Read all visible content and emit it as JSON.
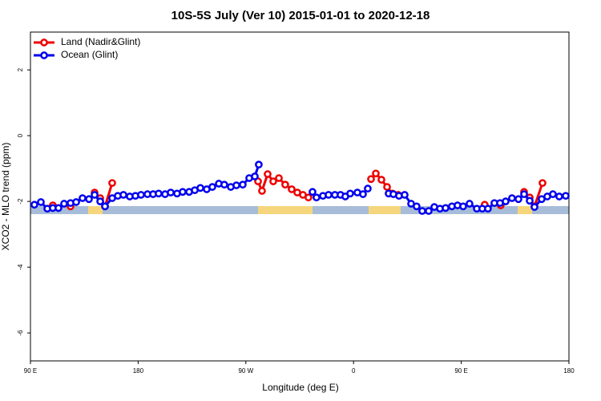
{
  "chart_data": {
    "type": "line",
    "title": "10S-5S July (Ver 10)   2015-01-01 to 2020-12-18",
    "x_label": "Longitude (deg E)",
    "y_label": "XCO2 - MLO trend (ppm)",
    "xlim": [
      90,
      540
    ],
    "ylim": [
      -6.85,
      3.15
    ],
    "xticks": [
      {
        "value": 90,
        "label": "90 E"
      },
      180,
      {
        "value": 270,
        "label": "90 W"
      },
      {
        "value": 360,
        "label": "0"
      },
      {
        "value": 450,
        "label": "90 E"
      },
      {
        "value": 540,
        "label": "180"
      }
    ],
    "yticks": [
      2,
      0,
      -2,
      -4,
      -6
    ],
    "legend": "upper left",
    "series": [
      {
        "name": "Land (Nadir&Glint)",
        "color": "#ee0000",
        "x": [
          108.7,
          null,
          123.5,
          null,
          143.6,
          148.3,
          152.3,
          158.3,
          null,
          280.2,
          283.5,
          288.2,
          292.9,
          297.6,
          302.9,
          308.3,
          313.0,
          317.7,
          322.3,
          null,
          374.6,
          378.6,
          383.3,
          388.0,
          392.6,
          397.3,
          null,
          469.6,
          null,
          483.0,
          null,
          502.5,
          507.2,
          511.2,
          517.9
        ],
        "values": [
          -2.12,
          null,
          -2.15,
          null,
          -1.73,
          -1.9,
          -2.15,
          -1.44,
          null,
          -1.39,
          -1.68,
          -1.17,
          -1.39,
          -1.29,
          -1.49,
          -1.63,
          -1.73,
          -1.8,
          -1.88,
          null,
          -1.32,
          -1.15,
          -1.34,
          -1.56,
          -1.76,
          -1.8,
          null,
          -2.1,
          null,
          -2.12,
          null,
          -1.71,
          -1.88,
          -2.15,
          -1.44
        ]
      },
      {
        "name": "Ocean (Glint)",
        "color": "#0000ee",
        "x": [
          93.3,
          98.7,
          104.1,
          108.7,
          113.4,
          118.1,
          123.5,
          128.2,
          133.5,
          138.9,
          143.6,
          148.3,
          152.3,
          158.3,
          163.0,
          167.7,
          173.0,
          177.7,
          182.4,
          187.8,
          192.5,
          197.1,
          202.5,
          207.2,
          212.5,
          217.2,
          222.6,
          227.3,
          232.0,
          237.3,
          242.0,
          247.4,
          252.0,
          257.4,
          262.1,
          267.4,
          272.8,
          277.5,
          280.8,
          null,
          325.7,
          329.0,
          334.4,
          339.1,
          344.4,
          349.1,
          353.1,
          357.2,
          363.2,
          367.9,
          371.9,
          null,
          389.3,
          393.3,
          398.0,
          402.7,
          408.1,
          412.7,
          417.4,
          422.8,
          427.5,
          432.2,
          436.9,
          442.2,
          446.9,
          451.6,
          456.9,
          463.0,
          467.6,
          472.3,
          477.7,
          482.4,
          487.1,
          492.4,
          497.8,
          502.5,
          507.2,
          511.2,
          517.2,
          521.9,
          526.6,
          531.9,
          537.3
        ],
        "values": [
          -2.1,
          -2.02,
          -2.22,
          -2.2,
          -2.2,
          -2.07,
          -2.05,
          -2.02,
          -1.9,
          -1.93,
          -1.8,
          -2.0,
          -2.15,
          -1.9,
          -1.83,
          -1.8,
          -1.85,
          -1.83,
          -1.8,
          -1.78,
          -1.78,
          -1.76,
          -1.78,
          -1.73,
          -1.76,
          -1.71,
          -1.71,
          -1.66,
          -1.59,
          -1.63,
          -1.56,
          -1.46,
          -1.49,
          -1.56,
          -1.51,
          -1.49,
          -1.29,
          -1.24,
          -0.88,
          null,
          -1.71,
          -1.88,
          -1.83,
          -1.8,
          -1.8,
          -1.8,
          -1.85,
          -1.76,
          -1.73,
          -1.78,
          -1.61,
          null,
          -1.76,
          -1.78,
          -1.83,
          -1.8,
          -2.07,
          -2.15,
          -2.29,
          -2.29,
          -2.17,
          -2.22,
          -2.2,
          -2.15,
          -2.12,
          -2.15,
          -2.07,
          -2.22,
          -2.22,
          -2.22,
          -2.05,
          -2.05,
          -2.0,
          -1.9,
          -1.93,
          -1.78,
          -1.98,
          -2.17,
          -1.93,
          -1.85,
          -1.78,
          -1.85,
          -1.83
        ]
      }
    ]
  }
}
